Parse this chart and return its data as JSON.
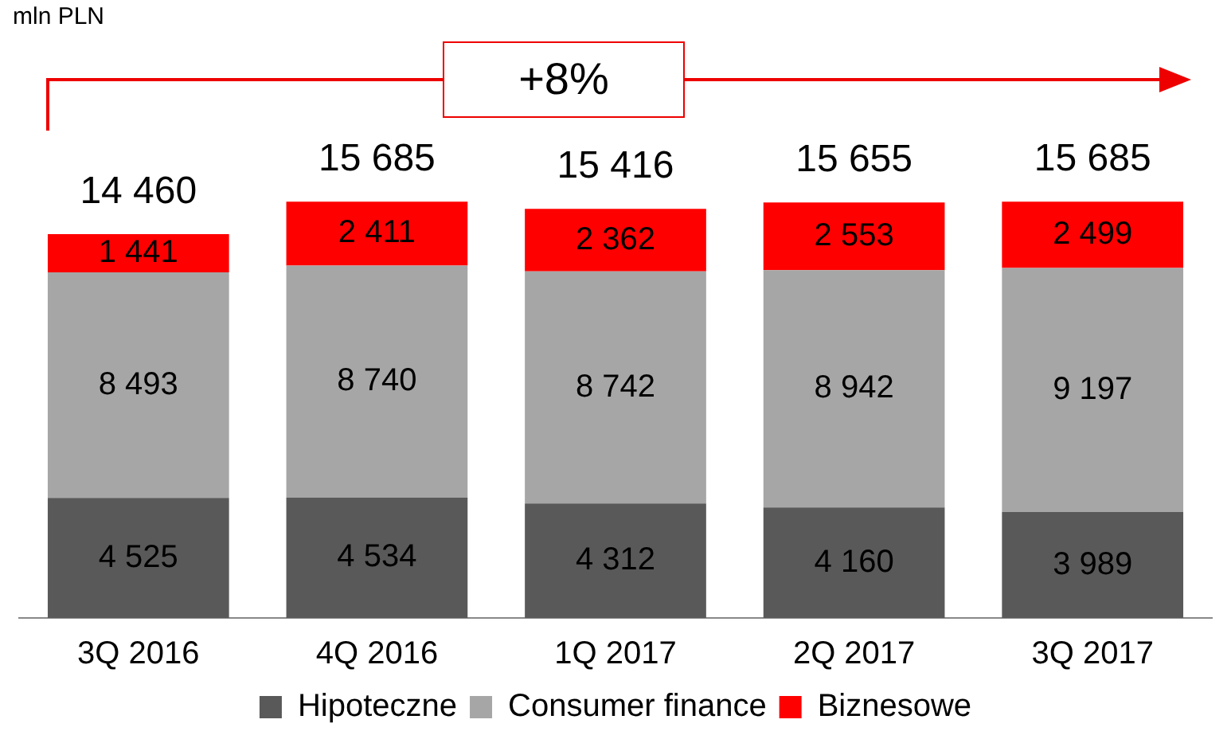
{
  "chart_data": {
    "type": "bar",
    "stacked": true,
    "annotations": [
      "mln PLN",
      "+8%"
    ],
    "categories": [
      "3Q 2016",
      "4Q 2016",
      "1Q 2017",
      "2Q 2017",
      "3Q 2017"
    ],
    "series": [
      {
        "name": "Hipoteczne",
        "color": "#595959",
        "values": [
          4525,
          4534,
          4312,
          4160,
          3989
        ],
        "value_labels": [
          "4 525",
          "4 534",
          "4 312",
          "4 160",
          "3 989"
        ]
      },
      {
        "name": "Consumer finance",
        "color": "#a6a6a6",
        "values": [
          8493,
          8740,
          8742,
          8942,
          9197
        ],
        "value_labels": [
          "8 493",
          "8 740",
          "8 742",
          "8 942",
          "9 197"
        ]
      },
      {
        "name": "Biznesowe",
        "color": "#ff0000",
        "values": [
          1441,
          2411,
          2362,
          2553,
          2499
        ],
        "value_labels": [
          "1 441",
          "2 411",
          "2 362",
          "2 553",
          "2 499"
        ]
      }
    ],
    "totals": [
      "14 460",
      "15 685",
      "15 416",
      "15 655",
      "15 685"
    ],
    "legend": "bottom",
    "grid": false
  }
}
